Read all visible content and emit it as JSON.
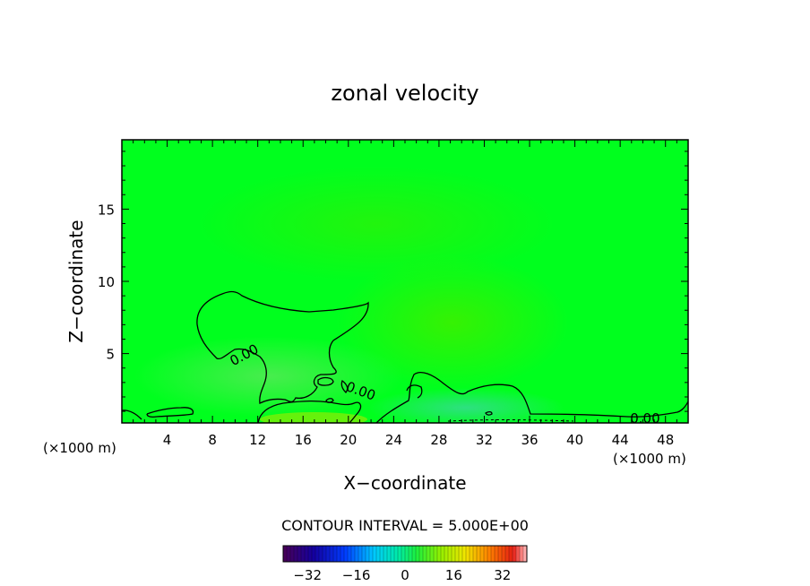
{
  "chart_data": {
    "type": "contour",
    "title": "zonal velocity",
    "xlabel": "X−coordinate",
    "ylabel": "Z−coordinate",
    "x_unit_left": "(×1000 m)",
    "x_unit_right": "(×1000 m)",
    "xlim": [
      0,
      50
    ],
    "ylim": [
      0.2,
      19.8
    ],
    "x_ticks": [
      4,
      8,
      12,
      16,
      20,
      24,
      28,
      32,
      36,
      40,
      44,
      48
    ],
    "y_ticks": [
      5,
      10,
      15
    ],
    "contour_labels": [
      {
        "text": "0.00",
        "x": 10.8,
        "y": 4.9,
        "angle": -28
      },
      {
        "text": "0.00",
        "x": 21.1,
        "y": 2.4,
        "angle": 20
      },
      {
        "text": "0.00",
        "x": 46.2,
        "y": 0.5,
        "angle": 0
      }
    ],
    "contour_interval_text": "CONTOUR INTERVAL =  5.000E+00",
    "colorbar": {
      "min": -40,
      "max": 40,
      "ticks": [
        "−32",
        "−16",
        "0",
        "16",
        "32"
      ],
      "tick_values": [
        -32,
        -16,
        0,
        16,
        32
      ]
    },
    "colors": {
      "background_field": "#00ff1e",
      "contour_line": "#000000"
    }
  }
}
